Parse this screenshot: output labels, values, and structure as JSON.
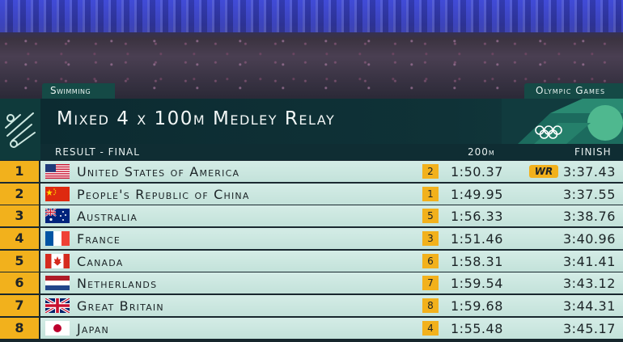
{
  "sport_label": "Swimming",
  "event_brand": "Olympic Games",
  "event_title": "Mixed 4 x 100m Medley Relay",
  "columns": {
    "left": "RESULT - FINAL",
    "split": "200m",
    "finish": "FINISH"
  },
  "results": [
    {
      "rank": "1",
      "country": "United States of America",
      "flag": "usa-flag",
      "split_rank": "2",
      "split_time": "1:50.37",
      "badge": "WR",
      "finish": "3:37.43"
    },
    {
      "rank": "2",
      "country": "People's Republic of China",
      "flag": "china-flag",
      "split_rank": "1",
      "split_time": "1:49.95",
      "badge": "",
      "finish": "3:37.55"
    },
    {
      "rank": "3",
      "country": "Australia",
      "flag": "australia-flag",
      "split_rank": "5",
      "split_time": "1:56.33",
      "badge": "",
      "finish": "3:38.76"
    },
    {
      "rank": "4",
      "country": "France",
      "flag": "france-flag",
      "split_rank": "3",
      "split_time": "1:51.46",
      "badge": "",
      "finish": "3:40.96"
    },
    {
      "rank": "5",
      "country": "Canada",
      "flag": "canada-flag",
      "split_rank": "6",
      "split_time": "1:58.31",
      "badge": "",
      "finish": "3:41.41"
    },
    {
      "rank": "6",
      "country": "Netherlands",
      "flag": "netherlands-flag",
      "split_rank": "7",
      "split_time": "1:59.54",
      "badge": "",
      "finish": "3:43.12"
    },
    {
      "rank": "7",
      "country": "Great Britain",
      "flag": "great-britain-flag",
      "split_rank": "8",
      "split_time": "1:59.68",
      "badge": "",
      "finish": "3:44.31"
    },
    {
      "rank": "8",
      "country": "Japan",
      "flag": "japan-flag",
      "split_rank": "4",
      "split_time": "1:55.48",
      "badge": "",
      "finish": "3:45.17"
    }
  ],
  "colors": {
    "accent": "#f2b11c",
    "header_bg": "#0f3237",
    "row_bg": "#c9e6df",
    "brand_green": "#154a46"
  }
}
